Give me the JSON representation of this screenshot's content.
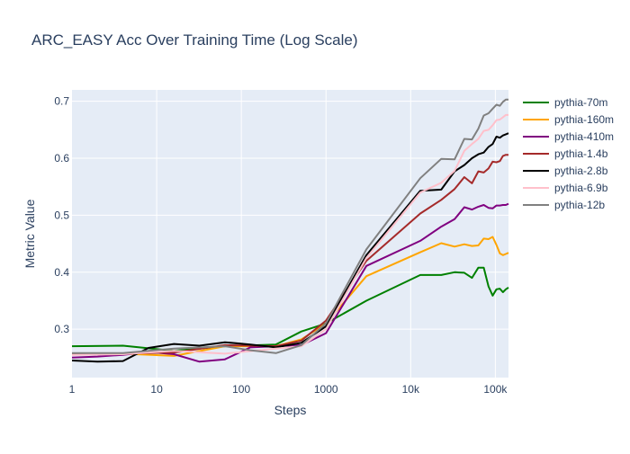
{
  "chart_data": {
    "type": "line",
    "title": "ARC_EASY Acc Over Training Time (Log Scale)",
    "xlabel": "Steps",
    "ylabel": "Metric Value",
    "x_scale": "log",
    "xlim": [
      1,
      143000
    ],
    "ylim": [
      0.215,
      0.72
    ],
    "x_ticks": [
      {
        "value": 1,
        "label": "1"
      },
      {
        "value": 10,
        "label": "10"
      },
      {
        "value": 100,
        "label": "100"
      },
      {
        "value": 1000,
        "label": "1000"
      },
      {
        "value": 10000,
        "label": "10k"
      },
      {
        "value": 100000,
        "label": "100k"
      }
    ],
    "y_ticks": [
      {
        "value": 0.3,
        "label": "0.3"
      },
      {
        "value": 0.4,
        "label": "0.4"
      },
      {
        "value": 0.5,
        "label": "0.5"
      },
      {
        "value": 0.6,
        "label": "0.6"
      },
      {
        "value": 0.7,
        "label": "0.7"
      }
    ],
    "grid": true,
    "legend_position": "right",
    "series": [
      {
        "name": "pythia-70m",
        "color": "#008000",
        "x": [
          1,
          4,
          16,
          64,
          256,
          512,
          1000,
          3000,
          13000,
          23000,
          33000,
          43000,
          53000,
          63000,
          73000,
          83000,
          93000,
          103000,
          113000,
          123000,
          133000,
          143000
        ],
        "y": [
          0.27,
          0.271,
          0.262,
          0.27,
          0.273,
          0.296,
          0.31,
          0.35,
          0.395,
          0.395,
          0.4,
          0.399,
          0.39,
          0.408,
          0.408,
          0.375,
          0.359,
          0.37,
          0.371,
          0.365,
          0.37,
          0.373
        ]
      },
      {
        "name": "pythia-160m",
        "color": "#FFA500",
        "x": [
          1,
          4,
          16,
          64,
          256,
          512,
          1000,
          3000,
          13000,
          23000,
          33000,
          43000,
          53000,
          63000,
          73000,
          83000,
          93000,
          103000,
          113000,
          123000,
          133000,
          143000
        ],
        "y": [
          0.256,
          0.257,
          0.253,
          0.27,
          0.27,
          0.282,
          0.31,
          0.393,
          0.435,
          0.451,
          0.445,
          0.449,
          0.446,
          0.447,
          0.459,
          0.458,
          0.462,
          0.448,
          0.433,
          0.43,
          0.432,
          0.434
        ]
      },
      {
        "name": "pythia-410m",
        "color": "#800080",
        "x": [
          1,
          2,
          4,
          8,
          16,
          32,
          64,
          128,
          256,
          512,
          1000,
          3000,
          13000,
          23000,
          33000,
          43000,
          53000,
          63000,
          73000,
          83000,
          93000,
          103000,
          113000,
          123000,
          133000,
          143000
        ],
        "y": [
          0.25,
          0.252,
          0.255,
          0.26,
          0.256,
          0.243,
          0.247,
          0.268,
          0.27,
          0.272,
          0.293,
          0.411,
          0.455,
          0.48,
          0.493,
          0.514,
          0.51,
          0.515,
          0.518,
          0.513,
          0.512,
          0.517,
          0.517,
          0.518,
          0.518,
          0.52
        ]
      },
      {
        "name": "pythia-1.4b",
        "color": "#A52A2A",
        "x": [
          1,
          4,
          16,
          64,
          256,
          512,
          1000,
          3000,
          13000,
          23000,
          33000,
          43000,
          53000,
          63000,
          73000,
          83000,
          93000,
          103000,
          113000,
          123000,
          133000,
          143000
        ],
        "y": [
          0.256,
          0.257,
          0.259,
          0.272,
          0.27,
          0.28,
          0.315,
          0.42,
          0.503,
          0.527,
          0.546,
          0.567,
          0.556,
          0.577,
          0.575,
          0.582,
          0.594,
          0.593,
          0.595,
          0.604,
          0.606,
          0.606
        ]
      },
      {
        "name": "pythia-2.8b",
        "color": "#000000",
        "x": [
          1,
          2,
          4,
          8,
          16,
          32,
          64,
          128,
          256,
          512,
          1000,
          3000,
          13000,
          23000,
          33000,
          43000,
          53000,
          63000,
          73000,
          83000,
          93000,
          103000,
          113000,
          123000,
          133000,
          143000
        ],
        "y": [
          0.245,
          0.243,
          0.244,
          0.267,
          0.274,
          0.271,
          0.277,
          0.273,
          0.268,
          0.276,
          0.305,
          0.43,
          0.543,
          0.545,
          0.577,
          0.588,
          0.6,
          0.607,
          0.61,
          0.62,
          0.625,
          0.638,
          0.636,
          0.64,
          0.642,
          0.644
        ]
      },
      {
        "name": "pythia-6.9b",
        "color": "#FFC0CB",
        "x": [
          1,
          4,
          16,
          64,
          256,
          512,
          1000,
          3000,
          13000,
          23000,
          33000,
          43000,
          53000,
          63000,
          73000,
          83000,
          93000,
          103000,
          113000,
          123000,
          133000,
          143000
        ],
        "y": [
          0.255,
          0.256,
          0.262,
          0.257,
          0.266,
          0.27,
          0.3,
          0.425,
          0.54,
          0.557,
          0.578,
          0.613,
          0.625,
          0.634,
          0.648,
          0.65,
          0.658,
          0.667,
          0.668,
          0.672,
          0.676,
          0.676
        ]
      },
      {
        "name": "pythia-12b",
        "color": "#808080",
        "x": [
          1,
          4,
          16,
          64,
          128,
          256,
          512,
          1000,
          3000,
          13000,
          23000,
          33000,
          43000,
          53000,
          63000,
          73000,
          83000,
          93000,
          103000,
          113000,
          123000,
          133000,
          143000
        ],
        "y": [
          0.258,
          0.258,
          0.266,
          0.27,
          0.263,
          0.258,
          0.272,
          0.31,
          0.44,
          0.565,
          0.599,
          0.598,
          0.634,
          0.633,
          0.652,
          0.675,
          0.679,
          0.687,
          0.694,
          0.692,
          0.699,
          0.703,
          0.703
        ]
      }
    ]
  }
}
